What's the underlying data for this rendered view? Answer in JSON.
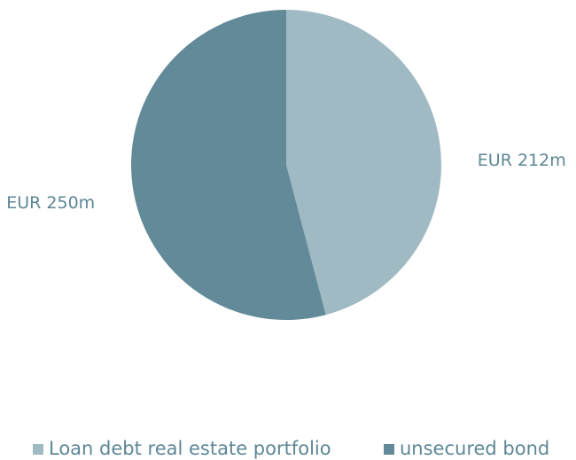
{
  "chart_data": {
    "type": "pie",
    "categories": [
      "Loan debt real estate portfolio",
      "unsecured bond"
    ],
    "values": [
      212,
      250
    ],
    "value_labels": [
      "EUR 212m",
      "EUR 250m"
    ],
    "colors": [
      "#a0bac4",
      "#628a99"
    ],
    "legend": "bottom"
  }
}
